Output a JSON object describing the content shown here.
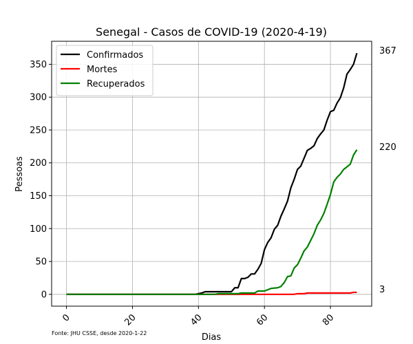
{
  "chart_data": {
    "type": "line",
    "title": "Senegal - Casos de COVID-19 (2020-4-19)",
    "xlabel": "Dias",
    "ylabel": "Pessoas",
    "xlim": [
      -4.5,
      92.5
    ],
    "ylim": [
      -18,
      385
    ],
    "xticks": [
      0,
      20,
      40,
      60,
      80
    ],
    "yticks": [
      0,
      50,
      100,
      150,
      200,
      250,
      300,
      350
    ],
    "grid": true,
    "legend_position": "top-left",
    "source": "Fonte: JHU CSSE, desde 2020-1-22",
    "end_labels": [
      "367",
      "220",
      "3"
    ],
    "series": [
      {
        "name": "Confirmados",
        "color": "#000000",
        "points": [
          [
            0,
            0
          ],
          [
            39,
            0
          ],
          [
            40,
            1
          ],
          [
            41,
            2
          ],
          [
            42,
            4
          ],
          [
            50,
            4
          ],
          [
            51,
            10
          ],
          [
            52,
            10
          ],
          [
            53,
            24
          ],
          [
            54,
            24
          ],
          [
            55,
            26
          ],
          [
            56,
            31
          ],
          [
            57,
            31
          ],
          [
            58,
            38
          ],
          [
            59,
            47
          ],
          [
            60,
            68
          ],
          [
            61,
            79
          ],
          [
            62,
            86
          ],
          [
            63,
            99
          ],
          [
            64,
            105
          ],
          [
            65,
            119
          ],
          [
            66,
            130
          ],
          [
            67,
            142
          ],
          [
            68,
            162
          ],
          [
            69,
            175
          ],
          [
            70,
            190
          ],
          [
            71,
            195
          ],
          [
            72,
            207
          ],
          [
            73,
            219
          ],
          [
            74,
            222
          ],
          [
            75,
            226
          ],
          [
            76,
            237
          ],
          [
            77,
            244
          ],
          [
            78,
            250
          ],
          [
            79,
            265
          ],
          [
            80,
            278
          ],
          [
            81,
            280
          ],
          [
            82,
            291
          ],
          [
            83,
            299
          ],
          [
            84,
            314
          ],
          [
            85,
            335
          ],
          [
            86,
            342
          ],
          [
            87,
            350
          ],
          [
            88,
            367
          ]
        ]
      },
      {
        "name": "Mortes",
        "color": "#ff0000",
        "points": [
          [
            0,
            0
          ],
          [
            69,
            0
          ],
          [
            70,
            1
          ],
          [
            72,
            1
          ],
          [
            73,
            2
          ],
          [
            85,
            2
          ],
          [
            86,
            2
          ],
          [
            87,
            3
          ],
          [
            88,
            3
          ]
        ]
      },
      {
        "name": "Recuperados",
        "color": "#008000",
        "points": [
          [
            0,
            0
          ],
          [
            45,
            0
          ],
          [
            46,
            1
          ],
          [
            52,
            1
          ],
          [
            53,
            2
          ],
          [
            57,
            2
          ],
          [
            58,
            5
          ],
          [
            60,
            5
          ],
          [
            61,
            7
          ],
          [
            62,
            9
          ],
          [
            64,
            10
          ],
          [
            65,
            12
          ],
          [
            66,
            18
          ],
          [
            67,
            27
          ],
          [
            68,
            28
          ],
          [
            69,
            40
          ],
          [
            70,
            45
          ],
          [
            71,
            55
          ],
          [
            72,
            66
          ],
          [
            73,
            72
          ],
          [
            74,
            82
          ],
          [
            75,
            92
          ],
          [
            76,
            105
          ],
          [
            77,
            113
          ],
          [
            78,
            123
          ],
          [
            79,
            137
          ],
          [
            80,
            152
          ],
          [
            81,
            171
          ],
          [
            82,
            178
          ],
          [
            83,
            183
          ],
          [
            84,
            190
          ],
          [
            85,
            194
          ],
          [
            86,
            198
          ],
          [
            87,
            212
          ],
          [
            88,
            220
          ]
        ]
      }
    ]
  }
}
